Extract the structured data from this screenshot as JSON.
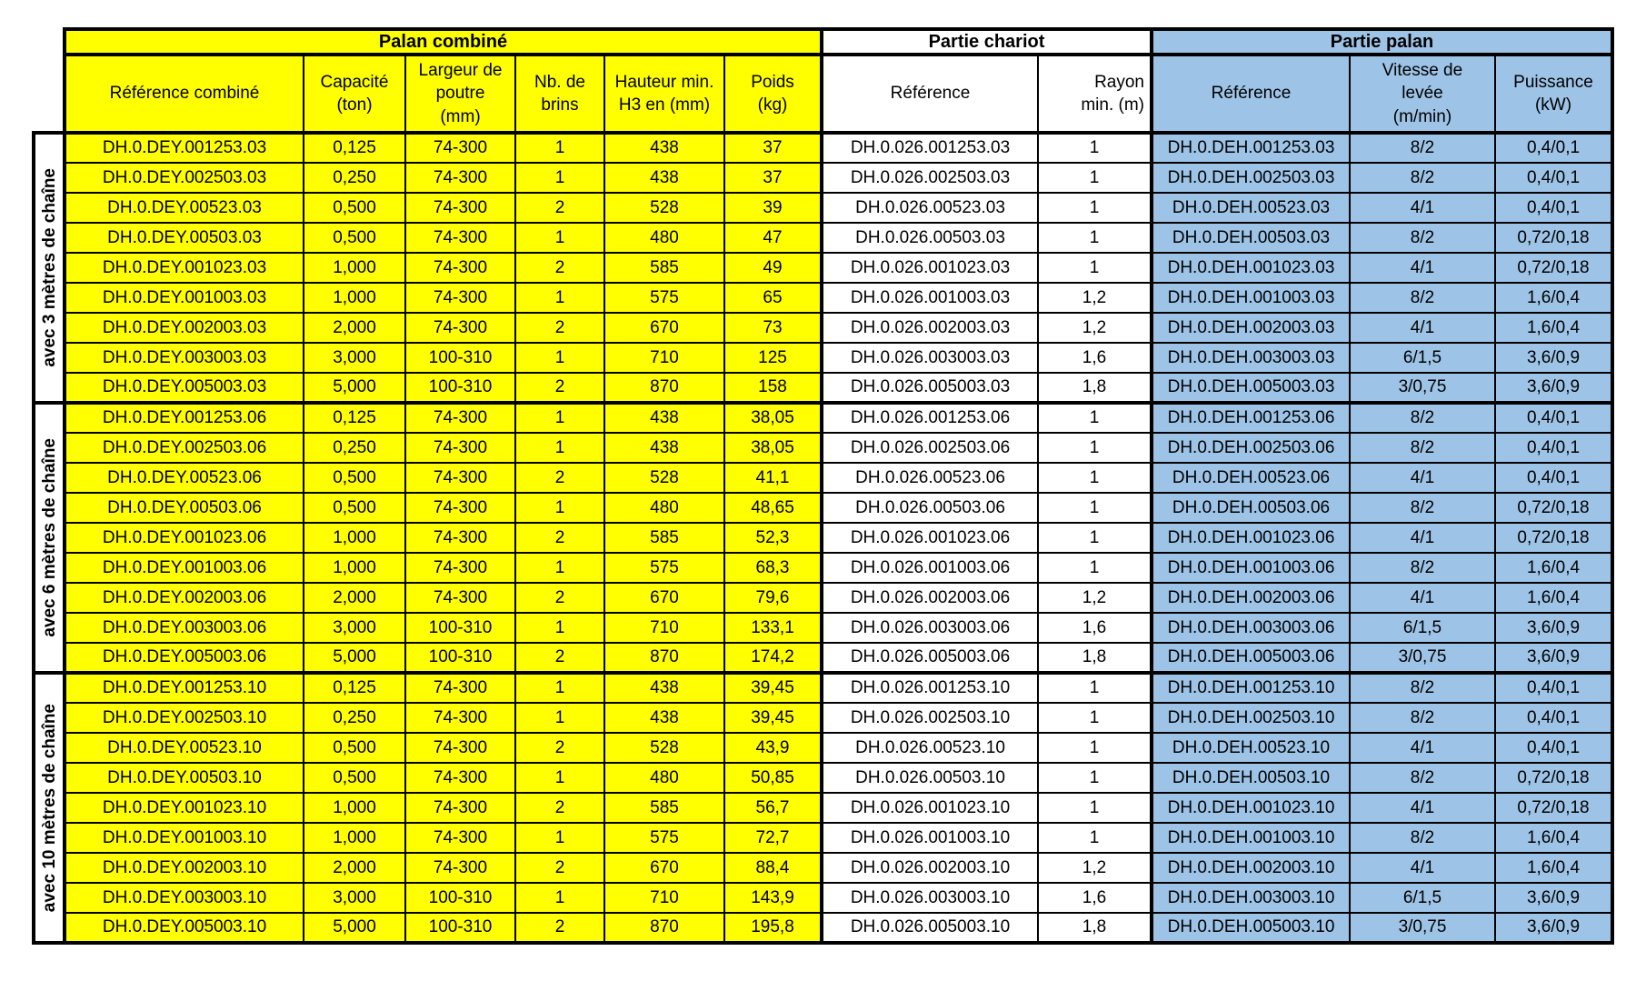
{
  "sections": {
    "combine": {
      "title": "Palan combiné",
      "color": "#FFFF00"
    },
    "chariot": {
      "title": "Partie chariot",
      "color": "#FFFFFF"
    },
    "palan": {
      "title": "Partie palan",
      "color": "#9DC3E6"
    }
  },
  "columns": [
    {
      "key": "ref_combine",
      "label": "Référence combiné",
      "section": "combine"
    },
    {
      "key": "capacite",
      "label": "Capacité\n(ton)",
      "section": "combine"
    },
    {
      "key": "largeur",
      "label": "Largeur de\npoutre\n(mm)",
      "section": "combine"
    },
    {
      "key": "brins",
      "label": "Nb. de\nbrins",
      "section": "combine"
    },
    {
      "key": "hauteur",
      "label": "Hauteur min.\nH3 en (mm)",
      "section": "combine"
    },
    {
      "key": "poids",
      "label": "Poids\n(kg)",
      "section": "combine"
    },
    {
      "key": "ref_chariot",
      "label": "Référence",
      "section": "chariot"
    },
    {
      "key": "rayon",
      "label": "Rayon\nmin. (m)",
      "section": "chariot"
    },
    {
      "key": "ref_palan",
      "label": "Référence",
      "section": "palan"
    },
    {
      "key": "vitesse",
      "label": "Vitesse de\nlevée\n(m/min)",
      "section": "palan"
    },
    {
      "key": "puissance",
      "label": "Puissance\n(kW)",
      "section": "palan"
    }
  ],
  "groups": [
    {
      "label": "avec 3 mètres de chaîne",
      "rows": [
        [
          "DH.0.DEY.001253.03",
          "0,125",
          "74-300",
          "1",
          "438",
          "37",
          "DH.0.026.001253.03",
          "1",
          "DH.0.DEH.001253.03",
          "8/2",
          "0,4/0,1"
        ],
        [
          "DH.0.DEY.002503.03",
          "0,250",
          "74-300",
          "1",
          "438",
          "37",
          "DH.0.026.002503.03",
          "1",
          "DH.0.DEH.002503.03",
          "8/2",
          "0,4/0,1"
        ],
        [
          "DH.0.DEY.00523.03",
          "0,500",
          "74-300",
          "2",
          "528",
          "39",
          "DH.0.026.00523.03",
          "1",
          "DH.0.DEH.00523.03",
          "4/1",
          "0,4/0,1"
        ],
        [
          "DH.0.DEY.00503.03",
          "0,500",
          "74-300",
          "1",
          "480",
          "47",
          "DH.0.026.00503.03",
          "1",
          "DH.0.DEH.00503.03",
          "8/2",
          "0,72/0,18"
        ],
        [
          "DH.0.DEY.001023.03",
          "1,000",
          "74-300",
          "2",
          "585",
          "49",
          "DH.0.026.001023.03",
          "1",
          "DH.0.DEH.001023.03",
          "4/1",
          "0,72/0,18"
        ],
        [
          "DH.0.DEY.001003.03",
          "1,000",
          "74-300",
          "1",
          "575",
          "65",
          "DH.0.026.001003.03",
          "1,2",
          "DH.0.DEH.001003.03",
          "8/2",
          "1,6/0,4"
        ],
        [
          "DH.0.DEY.002003.03",
          "2,000",
          "74-300",
          "2",
          "670",
          "73",
          "DH.0.026.002003.03",
          "1,2",
          "DH.0.DEH.002003.03",
          "4/1",
          "1,6/0,4"
        ],
        [
          "DH.0.DEY.003003.03",
          "3,000",
          "100-310",
          "1",
          "710",
          "125",
          "DH.0.026.003003.03",
          "1,6",
          "DH.0.DEH.003003.03",
          "6/1,5",
          "3,6/0,9"
        ],
        [
          "DH.0.DEY.005003.03",
          "5,000",
          "100-310",
          "2",
          "870",
          "158",
          "DH.0.026.005003.03",
          "1,8",
          "DH.0.DEH.005003.03",
          "3/0,75",
          "3,6/0,9"
        ]
      ]
    },
    {
      "label": "avec 6 mètres de chaîne",
      "rows": [
        [
          "DH.0.DEY.001253.06",
          "0,125",
          "74-300",
          "1",
          "438",
          "38,05",
          "DH.0.026.001253.06",
          "1",
          "DH.0.DEH.001253.06",
          "8/2",
          "0,4/0,1"
        ],
        [
          "DH.0.DEY.002503.06",
          "0,250",
          "74-300",
          "1",
          "438",
          "38,05",
          "DH.0.026.002503.06",
          "1",
          "DH.0.DEH.002503.06",
          "8/2",
          "0,4/0,1"
        ],
        [
          "DH.0.DEY.00523.06",
          "0,500",
          "74-300",
          "2",
          "528",
          "41,1",
          "DH.0.026.00523.06",
          "1",
          "DH.0.DEH.00523.06",
          "4/1",
          "0,4/0,1"
        ],
        [
          "DH.0.DEY.00503.06",
          "0,500",
          "74-300",
          "1",
          "480",
          "48,65",
          "DH.0.026.00503.06",
          "1",
          "DH.0.DEH.00503.06",
          "8/2",
          "0,72/0,18"
        ],
        [
          "DH.0.DEY.001023.06",
          "1,000",
          "74-300",
          "2",
          "585",
          "52,3",
          "DH.0.026.001023.06",
          "1",
          "DH.0.DEH.001023.06",
          "4/1",
          "0,72/0,18"
        ],
        [
          "DH.0.DEY.001003.06",
          "1,000",
          "74-300",
          "1",
          "575",
          "68,3",
          "DH.0.026.001003.06",
          "1",
          "DH.0.DEH.001003.06",
          "8/2",
          "1,6/0,4"
        ],
        [
          "DH.0.DEY.002003.06",
          "2,000",
          "74-300",
          "2",
          "670",
          "79,6",
          "DH.0.026.002003.06",
          "1,2",
          "DH.0.DEH.002003.06",
          "4/1",
          "1,6/0,4"
        ],
        [
          "DH.0.DEY.003003.06",
          "3,000",
          "100-310",
          "1",
          "710",
          "133,1",
          "DH.0.026.003003.06",
          "1,6",
          "DH.0.DEH.003003.06",
          "6/1,5",
          "3,6/0,9"
        ],
        [
          "DH.0.DEY.005003.06",
          "5,000",
          "100-310",
          "2",
          "870",
          "174,2",
          "DH.0.026.005003.06",
          "1,8",
          "DH.0.DEH.005003.06",
          "3/0,75",
          "3,6/0,9"
        ]
      ]
    },
    {
      "label": "avec 10 mètres de chaîne",
      "rows": [
        [
          "DH.0.DEY.001253.10",
          "0,125",
          "74-300",
          "1",
          "438",
          "39,45",
          "DH.0.026.001253.10",
          "1",
          "DH.0.DEH.001253.10",
          "8/2",
          "0,4/0,1"
        ],
        [
          "DH.0.DEY.002503.10",
          "0,250",
          "74-300",
          "1",
          "438",
          "39,45",
          "DH.0.026.002503.10",
          "1",
          "DH.0.DEH.002503.10",
          "8/2",
          "0,4/0,1"
        ],
        [
          "DH.0.DEY.00523.10",
          "0,500",
          "74-300",
          "2",
          "528",
          "43,9",
          "DH.0.026.00523.10",
          "1",
          "DH.0.DEH.00523.10",
          "4/1",
          "0,4/0,1"
        ],
        [
          "DH.0.DEY.00503.10",
          "0,500",
          "74-300",
          "1",
          "480",
          "50,85",
          "DH.0.026.00503.10",
          "1",
          "DH.0.DEH.00503.10",
          "8/2",
          "0,72/0,18"
        ],
        [
          "DH.0.DEY.001023.10",
          "1,000",
          "74-300",
          "2",
          "585",
          "56,7",
          "DH.0.026.001023.10",
          "1",
          "DH.0.DEH.001023.10",
          "4/1",
          "0,72/0,18"
        ],
        [
          "DH.0.DEY.001003.10",
          "1,000",
          "74-300",
          "1",
          "575",
          "72,7",
          "DH.0.026.001003.10",
          "1",
          "DH.0.DEH.001003.10",
          "8/2",
          "1,6/0,4"
        ],
        [
          "DH.0.DEY.002003.10",
          "2,000",
          "74-300",
          "2",
          "670",
          "88,4",
          "DH.0.026.002003.10",
          "1,2",
          "DH.0.DEH.002003.10",
          "4/1",
          "1,6/0,4"
        ],
        [
          "DH.0.DEY.003003.10",
          "3,000",
          "100-310",
          "1",
          "710",
          "143,9",
          "DH.0.026.003003.10",
          "1,6",
          "DH.0.DEH.003003.10",
          "6/1,5",
          "3,6/0,9"
        ],
        [
          "DH.0.DEY.005003.10",
          "5,000",
          "100-310",
          "2",
          "870",
          "195,8",
          "DH.0.026.005003.10",
          "1,8",
          "DH.0.DEH.005003.10",
          "3/0,75",
          "3,6/0,9"
        ]
      ]
    }
  ]
}
